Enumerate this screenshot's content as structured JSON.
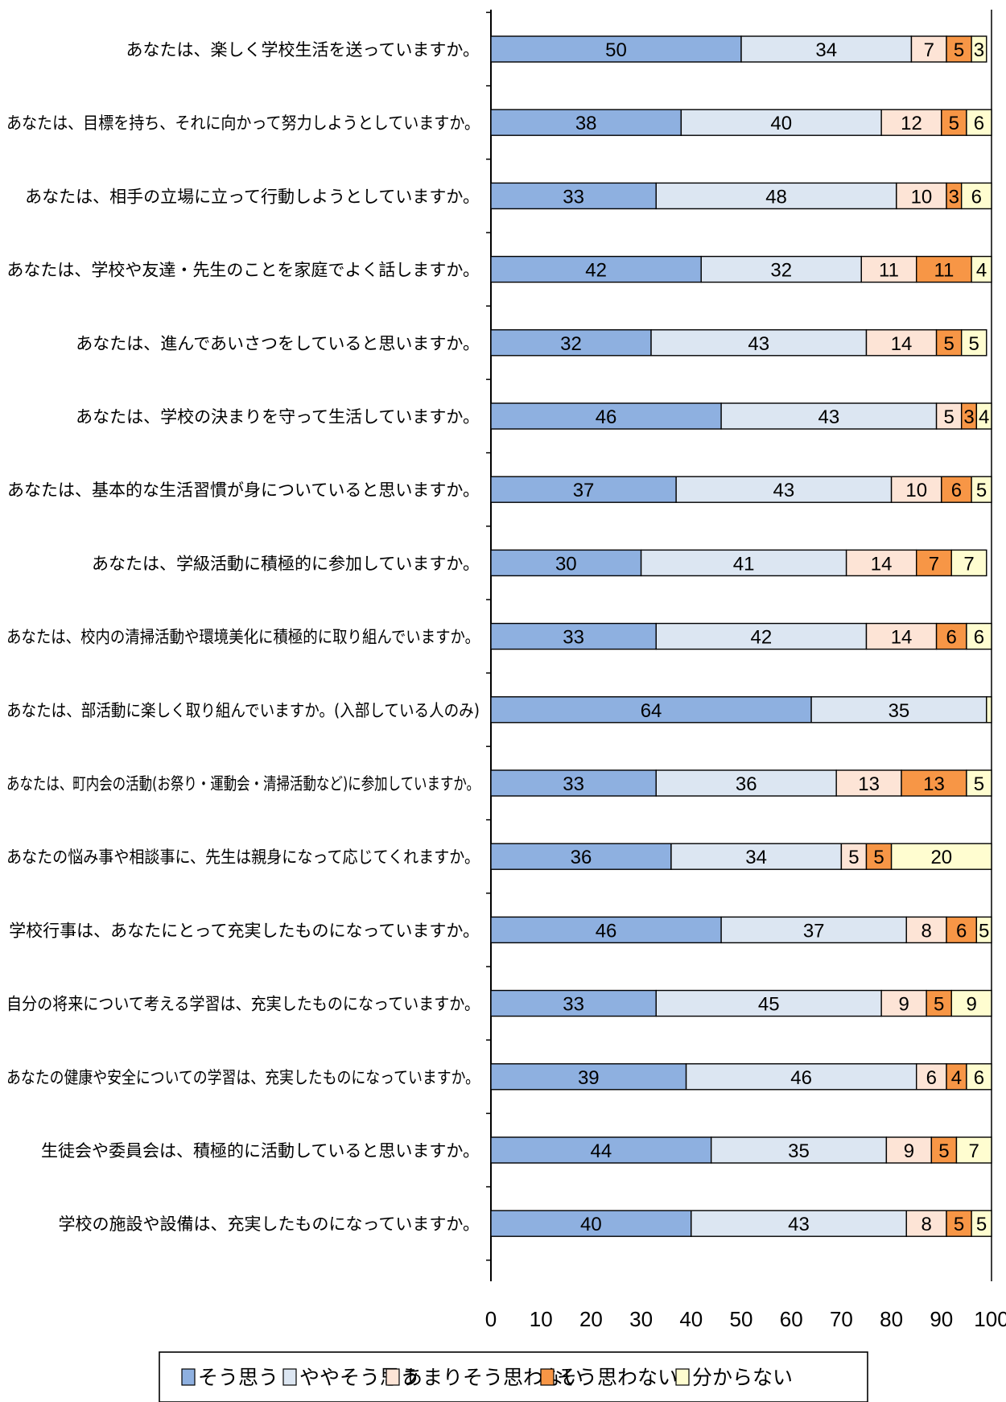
{
  "chart_data": {
    "type": "bar",
    "orientation": "horizontal",
    "stacked": true,
    "title": "",
    "xlabel": "",
    "ylabel": "",
    "xlim": [
      0,
      100
    ],
    "xticks": [
      0,
      10,
      20,
      30,
      40,
      50,
      60,
      70,
      80,
      90,
      100
    ],
    "xtick_labels": [
      "0",
      "10",
      "20",
      "30",
      "40",
      "50",
      "60",
      "70",
      "80",
      "90",
      "100"
    ],
    "legend_position": "bottom",
    "grid": false,
    "categories": [
      "あなたは、楽しく学校生活を送っていますか。",
      "あなたは、目標を持ち、それに向かって努力しようとしていますか。",
      "あなたは、相手の立場に立って行動しようとしていますか。",
      "あなたは、学校や友達・先生のことを家庭でよく話しますか。",
      "あなたは、進んであいさつをしていると思いますか。",
      "あなたは、学校の決まりを守って生活していますか。",
      "あなたは、基本的な生活習慣が身についていると思いますか。",
      "あなたは、学級活動に積極的に参加していますか。",
      "あなたは、校内の清掃活動や環境美化に積極的に取り組んでいますか。",
      "あなたは、部活動に楽しく取り組んでいますか。(入部している人のみ)",
      "あなたは、町内会の活動(お祭り・運動会・清掃活動など)に参加していますか。",
      "あなたの悩み事や相談事に、先生は親身になって応じてくれますか。",
      "学校行事は、あなたにとって充実したものになっていますか。",
      "自分の将来について考える学習は、充実したものになっていますか。",
      "あなたの健康や安全についての学習は、充実したものになっていますか。",
      "生徒会や委員会は、積極的に活動していると思いますか。",
      "学校の施設や設備は、充実したものになっていますか。"
    ],
    "series": [
      {
        "name": "そう思う",
        "color": "#8eb0e0",
        "values": [
          50,
          38,
          33,
          42,
          32,
          46,
          37,
          30,
          33,
          64,
          33,
          36,
          46,
          33,
          39,
          44,
          40
        ]
      },
      {
        "name": "ややそう思う",
        "color": "#dce6f2",
        "values": [
          34,
          40,
          48,
          32,
          43,
          43,
          43,
          41,
          42,
          35,
          36,
          34,
          37,
          45,
          46,
          35,
          43
        ]
      },
      {
        "name": "あまりそう思わない",
        "color": "#fde4d6",
        "values": [
          7,
          12,
          10,
          11,
          14,
          5,
          10,
          14,
          14,
          0,
          13,
          5,
          8,
          9,
          6,
          9,
          8
        ]
      },
      {
        "name": "そう思わない",
        "color": "#f79646",
        "values": [
          5,
          5,
          3,
          11,
          5,
          3,
          6,
          7,
          6,
          0,
          13,
          5,
          6,
          5,
          4,
          5,
          5
        ]
      },
      {
        "name": "分からない",
        "color": "#fffdd0",
        "values": [
          3,
          6,
          6,
          4,
          5,
          4,
          5,
          7,
          6,
          1,
          5,
          20,
          5,
          9,
          6,
          7,
          5
        ]
      }
    ],
    "data_labels": [
      [
        "50",
        "34",
        "7",
        "5",
        "3"
      ],
      [
        "38",
        "40",
        "12",
        "5",
        "6"
      ],
      [
        "33",
        "48",
        "10",
        "3",
        "6"
      ],
      [
        "42",
        "32",
        "11",
        "11",
        "4"
      ],
      [
        "32",
        "43",
        "14",
        "5",
        "5"
      ],
      [
        "46",
        "43",
        "5",
        "3",
        "4"
      ],
      [
        "37",
        "43",
        "10",
        "6",
        "5"
      ],
      [
        "30",
        "41",
        "14",
        "7",
        "7"
      ],
      [
        "33",
        "42",
        "14",
        "6",
        "6"
      ],
      [
        "64",
        "35",
        "",
        "",
        ""
      ],
      [
        "33",
        "36",
        "13",
        "13",
        "5"
      ],
      [
        "36",
        "34",
        "5",
        "5",
        "20"
      ],
      [
        "46",
        "37",
        "8",
        "6",
        "5"
      ],
      [
        "33",
        "45",
        "9",
        "5",
        "9"
      ],
      [
        "39",
        "46",
        "6",
        "4",
        "6"
      ],
      [
        "44",
        "35",
        "9",
        "5",
        "7"
      ],
      [
        "40",
        "43",
        "8",
        "5",
        "5"
      ]
    ]
  }
}
